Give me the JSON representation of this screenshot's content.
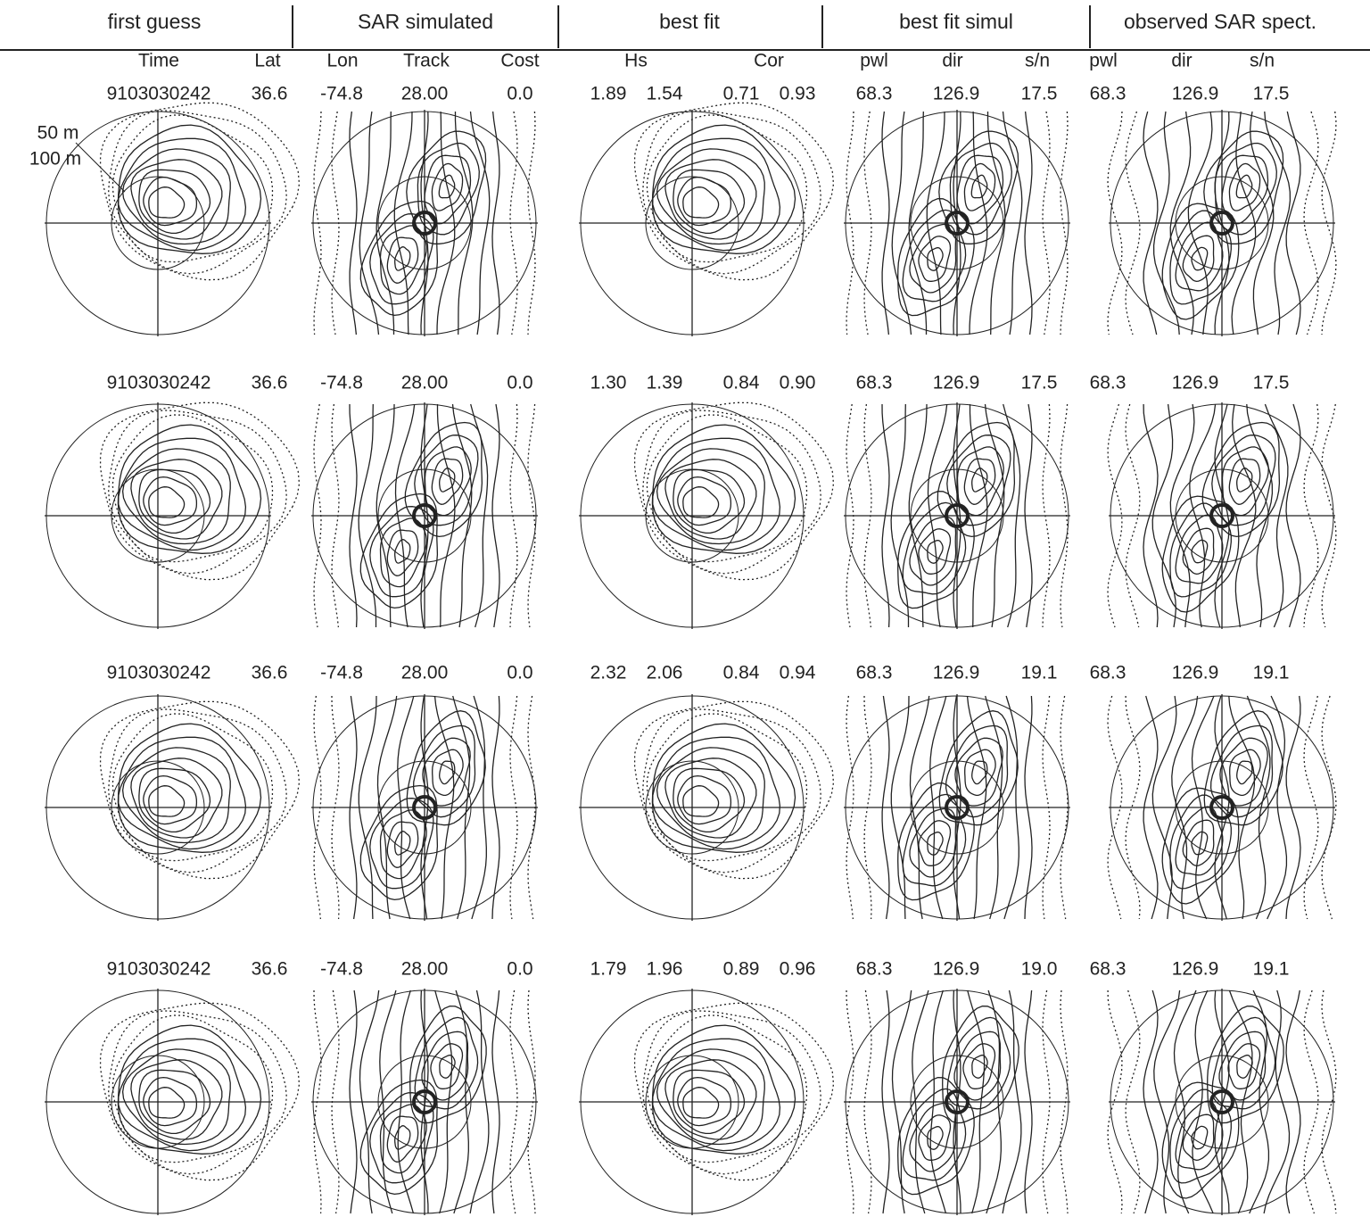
{
  "header": {
    "columns": [
      "first guess",
      "SAR simulated",
      "best fit",
      "best fit simul",
      "observed SAR spect."
    ]
  },
  "subheader": [
    "Time",
    "Lat",
    "Lon",
    "Track",
    "Cost",
    "Hs",
    "Cor",
    "pwl",
    "dir",
    "s/n",
    "pwl",
    "dir",
    "s/n"
  ],
  "scale_labels": [
    "50 m",
    "100 m"
  ],
  "rows": [
    [
      "9103030242",
      "36.6",
      "-74.8",
      "28.00",
      "0.0",
      "1.89",
      "1.54",
      "0.71",
      "0.93",
      "68.3",
      "126.9",
      "17.5",
      "68.3",
      "126.9",
      "17.5"
    ],
    [
      "9103030242",
      "36.6",
      "-74.8",
      "28.00",
      "0.0",
      "1.30",
      "1.39",
      "0.84",
      "0.90",
      "68.3",
      "126.9",
      "17.5",
      "68.3",
      "126.9",
      "17.5"
    ],
    [
      "9103030242",
      "36.6",
      "-74.8",
      "28.00",
      "0.0",
      "2.32",
      "2.06",
      "0.84",
      "0.94",
      "68.3",
      "126.9",
      "19.1",
      "68.3",
      "126.9",
      "19.1"
    ],
    [
      "9103030242",
      "36.6",
      "-74.8",
      "28.00",
      "0.0",
      "1.79",
      "1.96",
      "0.89",
      "0.96",
      "68.3",
      "126.9",
      "19.0",
      "68.3",
      "126.9",
      "19.1"
    ]
  ]
}
